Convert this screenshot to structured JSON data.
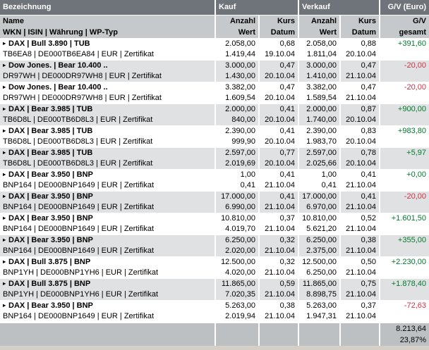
{
  "colors": {
    "header_bg": "#6f747a",
    "subheader_bg": "#c5c9cb",
    "row_alt_bg": "#e0e1e2",
    "footer_bg": "#bcc0c3",
    "positive": "#007b2c",
    "negative": "#cc3344"
  },
  "table": {
    "marker_glyph": "▸",
    "header": {
      "bezeichnung": "Bezeichnung",
      "kauf": "Kauf",
      "verkauf": "Verkauf",
      "gv": "G/V (Euro)"
    },
    "subheader": {
      "name": "Name",
      "wkn": "WKN | ISIN | Währung | WP-Typ",
      "kauf_anzahl": "Anzahl",
      "kauf_wert": "Wert",
      "kauf_kurs": "Kurs",
      "kauf_datum": "Datum",
      "verkauf_anzahl": "Anzahl",
      "verkauf_wert": "Wert",
      "verkauf_kurs": "Kurs",
      "verkauf_datum": "Datum",
      "gv_line1": "G/V",
      "gv_line2": "gesamt"
    },
    "rows": [
      {
        "name": "DAX | Bull 3.890 | TUB",
        "details": "TB6EA8 | DE000TB6EA84 | EUR | Zertifikat",
        "kauf": {
          "anzahl": "2.058,00",
          "wert": "1.419,44",
          "kurs": "0,68",
          "datum": "19.10.04"
        },
        "verkauf": {
          "anzahl": "2.058,00",
          "wert": "1.811,04",
          "kurs": "0,88",
          "datum": "20.10.04"
        },
        "gv": "+391,60",
        "trend": "positive"
      },
      {
        "name": "Dow Jones. | Bear 10.400 ..",
        "details": "DR97WH | DE000DR97WH8 | EUR | Zertifikat",
        "kauf": {
          "anzahl": "3.000,00",
          "wert": "1.430,00",
          "kurs": "0,47",
          "datum": "20.10.04"
        },
        "verkauf": {
          "anzahl": "3.000,00",
          "wert": "1.410,00",
          "kurs": "0,47",
          "datum": "21.10.04"
        },
        "gv": "-20,00",
        "trend": "negative"
      },
      {
        "name": "Dow Jones. | Bear 10.400 ..",
        "details": "DR97WH | DE000DR97WH8 | EUR | Zertifikat",
        "kauf": {
          "anzahl": "3.382,00",
          "wert": "1.609,54",
          "kurs": "0,47",
          "datum": "20.10.04"
        },
        "verkauf": {
          "anzahl": "3.382,00",
          "wert": "1.589,54",
          "kurs": "0,47",
          "datum": "21.10.04"
        },
        "gv": "-20,00",
        "trend": "negative"
      },
      {
        "name": "DAX | Bear 3.985 | TUB",
        "details": "TB6D8L | DE000TB6D8L3 | EUR | Zertifikat",
        "kauf": {
          "anzahl": "2.000,00",
          "wert": "840,00",
          "kurs": "0,41",
          "datum": "20.10.04"
        },
        "verkauf": {
          "anzahl": "2.000,00",
          "wert": "1.740,00",
          "kurs": "0,87",
          "datum": "20.10.04"
        },
        "gv": "+900,00",
        "trend": "positive"
      },
      {
        "name": "DAX | Bear 3.985 | TUB",
        "details": "TB6D8L | DE000TB6D8L3 | EUR | Zertifikat",
        "kauf": {
          "anzahl": "2.390,00",
          "wert": "999,90",
          "kurs": "0,41",
          "datum": "20.10.04"
        },
        "verkauf": {
          "anzahl": "2.390,00",
          "wert": "1.983,70",
          "kurs": "0,83",
          "datum": "20.10.04"
        },
        "gv": "+983,80",
        "trend": "positive"
      },
      {
        "name": "DAX | Bear 3.985 | TUB",
        "details": "TB6D8L | DE000TB6D8L3 | EUR | Zertifikat",
        "kauf": {
          "anzahl": "2.597,00",
          "wert": "2.019,69",
          "kurs": "0,77",
          "datum": "20.10.04"
        },
        "verkauf": {
          "anzahl": "2.597,00",
          "wert": "2.025,66",
          "kurs": "0,78",
          "datum": "20.10.04"
        },
        "gv": "+5,97",
        "trend": "positive"
      },
      {
        "name": "DAX | Bear 3.950 | BNP",
        "details": "BNP164 | DE000BNP1649 | EUR | Zertifikat",
        "kauf": {
          "anzahl": "1,00",
          "wert": "0,41",
          "kurs": "0,41",
          "datum": "21.10.04"
        },
        "verkauf": {
          "anzahl": "1,00",
          "wert": "0,41",
          "kurs": "0,41",
          "datum": "21.10.04"
        },
        "gv": "+0,00",
        "trend": "positive"
      },
      {
        "name": "DAX | Bear 3.950 | BNP",
        "details": "BNP164 | DE000BNP1649 | EUR | Zertifikat",
        "kauf": {
          "anzahl": "17.000,00",
          "wert": "6.990,00",
          "kurs": "0,41",
          "datum": "21.10.04"
        },
        "verkauf": {
          "anzahl": "17.000,00",
          "wert": "6.970,00",
          "kurs": "0,41",
          "datum": "21.10.04"
        },
        "gv": "-20,00",
        "trend": "negative"
      },
      {
        "name": "DAX | Bear 3.950 | BNP",
        "details": "BNP164 | DE000BNP1649 | EUR | Zertifikat",
        "kauf": {
          "anzahl": "10.810,00",
          "wert": "4.019,70",
          "kurs": "0,37",
          "datum": "21.10.04"
        },
        "verkauf": {
          "anzahl": "10.810,00",
          "wert": "5.621,20",
          "kurs": "0,52",
          "datum": "21.10.04"
        },
        "gv": "+1.601,50",
        "trend": "positive"
      },
      {
        "name": "DAX | Bear 3.950 | BNP",
        "details": "BNP164 | DE000BNP1649 | EUR | Zertifikat",
        "kauf": {
          "anzahl": "6.250,00",
          "wert": "2.020,00",
          "kurs": "0,32",
          "datum": "21.10.04"
        },
        "verkauf": {
          "anzahl": "6.250,00",
          "wert": "2.375,00",
          "kurs": "0,38",
          "datum": "21.10.04"
        },
        "gv": "+355,00",
        "trend": "positive"
      },
      {
        "name": "DAX | Bull 3.875 | BNP",
        "details": "BNP1YH | DE000BNP1YH6 | EUR | Zertifikat",
        "kauf": {
          "anzahl": "12.500,00",
          "wert": "4.020,00",
          "kurs": "0,32",
          "datum": "21.10.04"
        },
        "verkauf": {
          "anzahl": "12.500,00",
          "wert": "6.250,00",
          "kurs": "0,50",
          "datum": "21.10.04"
        },
        "gv": "+2.230,00",
        "trend": "positive"
      },
      {
        "name": "DAX | Bull 3.875 | BNP",
        "details": "BNP1YH | DE000BNP1YH6 | EUR | Zertifikat",
        "kauf": {
          "anzahl": "11.865,00",
          "wert": "7.020,35",
          "kurs": "0,59",
          "datum": "21.10.04"
        },
        "verkauf": {
          "anzahl": "11.865,00",
          "wert": "8.898,75",
          "kurs": "0,75",
          "datum": "21.10.04"
        },
        "gv": "+1.878,40",
        "trend": "positive"
      },
      {
        "name": "DAX | Bear 3.950 | BNP",
        "details": "BNP164 | DE000BNP1649 | EUR | Zertifikat",
        "kauf": {
          "anzahl": "5.263,00",
          "wert": "2.019,94",
          "kurs": "0,38",
          "datum": "21.10.04"
        },
        "verkauf": {
          "anzahl": "5.263,00",
          "wert": "1.947,31",
          "kurs": "0,37",
          "datum": "21.10.04"
        },
        "gv": "-72,63",
        "trend": "negative"
      }
    ],
    "footer": {
      "gv_total": "8.213,64",
      "gv_percent": "23,87%"
    }
  }
}
